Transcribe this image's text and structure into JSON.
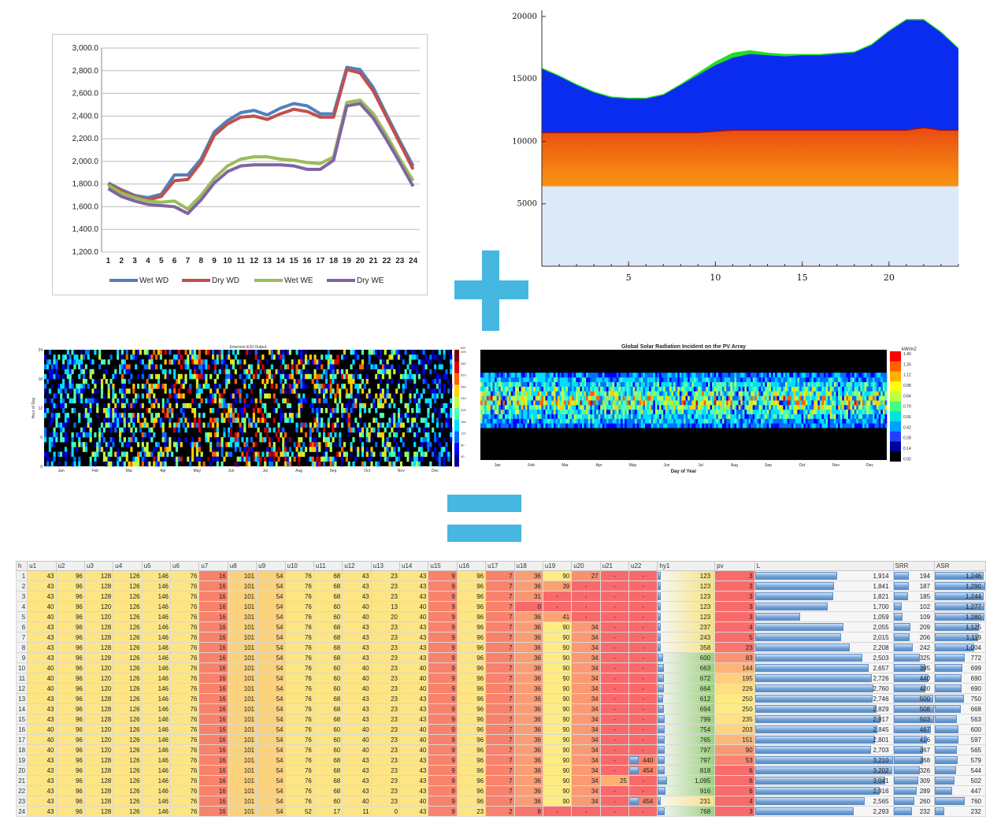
{
  "operators": {
    "plus": "+",
    "equals": "="
  },
  "chart_data": [
    {
      "type": "line",
      "y_tick_labels": [
        "3,000.0",
        "2,800.0",
        "2,600.0",
        "2,400.0",
        "2,200.0",
        "2,000.0",
        "1,800.0",
        "1,600.0",
        "1,400.0",
        "1,200.0"
      ],
      "ylim": [
        1200,
        3000
      ],
      "x": [
        1,
        2,
        3,
        4,
        5,
        6,
        7,
        8,
        9,
        10,
        11,
        12,
        13,
        14,
        15,
        16,
        17,
        18,
        19,
        20,
        21,
        22,
        23,
        24
      ],
      "grid": true,
      "legend_position": "bottom",
      "series": [
        {
          "name": "Wet WD",
          "color": "#4f81bd",
          "values": [
            1810,
            1750,
            1700,
            1680,
            1710,
            1880,
            1880,
            2020,
            2260,
            2360,
            2430,
            2450,
            2410,
            2470,
            2510,
            2490,
            2420,
            2420,
            2830,
            2810,
            2650,
            2410,
            2180,
            1960
          ]
        },
        {
          "name": "Dry WD",
          "color": "#c0504d",
          "values": [
            1800,
            1740,
            1690,
            1660,
            1690,
            1830,
            1840,
            1990,
            2230,
            2330,
            2390,
            2400,
            2370,
            2420,
            2460,
            2440,
            2390,
            2390,
            2810,
            2780,
            2620,
            2390,
            2160,
            1930
          ]
        },
        {
          "name": "Wet WE",
          "color": "#9bbb59",
          "values": [
            1790,
            1720,
            1680,
            1650,
            1640,
            1650,
            1580,
            1700,
            1850,
            1960,
            2020,
            2040,
            2040,
            2020,
            2010,
            1990,
            1980,
            2040,
            2520,
            2540,
            2420,
            2230,
            2020,
            1830
          ]
        },
        {
          "name": "Dry WE",
          "color": "#8064a2",
          "values": [
            1760,
            1690,
            1650,
            1620,
            1610,
            1600,
            1540,
            1660,
            1810,
            1910,
            1960,
            1970,
            1970,
            1970,
            1960,
            1930,
            1930,
            2010,
            2490,
            2510,
            2380,
            2190,
            1990,
            1780
          ]
        }
      ]
    },
    {
      "type": "area",
      "x_tick_labels": [
        "5",
        "10",
        "15",
        "20"
      ],
      "y_tick_labels": [
        "20000",
        "15000",
        "10000",
        "5000"
      ],
      "xlim": [
        0,
        24
      ],
      "ylim": [
        0,
        20500
      ],
      "x": [
        0,
        1,
        2,
        3,
        4,
        5,
        6,
        7,
        8,
        9,
        10,
        11,
        12,
        13,
        14,
        15,
        16,
        17,
        18,
        19,
        20,
        21,
        22,
        23,
        24
      ],
      "layers": [
        {
          "color": "#dbe9f8",
          "values": [
            6400,
            6400,
            6400,
            6400,
            6400,
            6400,
            6400,
            6400,
            6400,
            6400,
            6400,
            6400,
            6400,
            6400,
            6400,
            6400,
            6400,
            6400,
            6400,
            6400,
            6400,
            6400,
            6400,
            6400,
            6400
          ]
        },
        {
          "color": "#ffc21a",
          "values": [
            10700,
            10700,
            10700,
            10700,
            10700,
            10700,
            10700,
            10700,
            10700,
            10700,
            10800,
            10900,
            10900,
            10900,
            10900,
            10900,
            10900,
            10900,
            10900,
            10900,
            10900,
            10900,
            11100,
            10900,
            10900
          ]
        },
        {
          "color": "#0a2cf0",
          "values": [
            15800,
            15200,
            14500,
            13900,
            13500,
            13400,
            13400,
            13700,
            14500,
            15300,
            16100,
            16700,
            17000,
            16900,
            16800,
            16900,
            16900,
            17000,
            17100,
            17700,
            18800,
            19700,
            19700,
            18700,
            17400
          ]
        },
        {
          "color": "#22dd22",
          "values": [
            15900,
            15300,
            14600,
            14000,
            13600,
            13500,
            13500,
            13800,
            14600,
            15500,
            16400,
            17100,
            17300,
            17100,
            17000,
            17000,
            17000,
            17100,
            17200,
            17800,
            18900,
            19800,
            19800,
            18800,
            17500
          ]
        }
      ]
    },
    {
      "type": "heatmap",
      "title": "Emerson E33 Output",
      "ylabel": "Hour of Day",
      "y_tick_labels": [
        "24",
        "18",
        "12",
        "6",
        "0"
      ],
      "x_tick_labels": [
        "Jan",
        "Feb",
        "Mar",
        "Apr",
        "May",
        "Jun",
        "Jul",
        "Aug",
        "Sep",
        "Oct",
        "Nov",
        "Dec"
      ],
      "colorbar_unit": "kW",
      "colorbar_ticks": [
        "400",
        "360",
        "320",
        "280",
        "240",
        "200",
        "160",
        "120",
        "80",
        "40"
      ]
    },
    {
      "type": "heatmap",
      "title": "Global Solar Radiation Incident on the PV Array",
      "xlabel": "Day of Year",
      "y_tick_labels": [
        "24",
        "18",
        "12",
        "6",
        "0"
      ],
      "x_tick_labels": [
        "Jan",
        "Feb",
        "Mar",
        "Apr",
        "May",
        "Jun",
        "Jul",
        "Aug",
        "Sep",
        "Oct",
        "Nov",
        "Dec"
      ],
      "colorbar_unit": "kW/m2",
      "colorbar_ticks": [
        "1.40",
        "1.26",
        "1.12",
        "0.98",
        "0.84",
        "0.70",
        "0.56",
        "0.42",
        "0.28",
        "0.14",
        "0.00"
      ]
    },
    {
      "type": "table",
      "columns": [
        "h",
        "u1",
        "u2",
        "u3",
        "u4",
        "u5",
        "u6",
        "u7",
        "u8",
        "u9",
        "u10",
        "u11",
        "u12",
        "u13",
        "u14",
        "u15",
        "u16",
        "u17",
        "u18",
        "u19",
        "u20",
        "u21",
        "u22",
        "hy1",
        "pv",
        "L",
        "SRR",
        "ASR"
      ],
      "rows": [
        [
          "1",
          "43",
          "96",
          "128",
          "126",
          "146",
          "76",
          "16",
          "101",
          "54",
          "76",
          "68",
          "43",
          "23",
          "43",
          "9",
          "96",
          "7",
          "36",
          "90",
          "27",
          "-",
          "-",
          "123",
          "3",
          "1,914",
          "194",
          "1,246"
        ],
        [
          "2",
          "43",
          "96",
          "128",
          "126",
          "146",
          "76",
          "16",
          "101",
          "54",
          "76",
          "68",
          "43",
          "23",
          "43",
          "9",
          "96",
          "7",
          "36",
          "39",
          "-",
          "-",
          "-",
          "123",
          "3",
          "1,841",
          "187",
          "1,290"
        ],
        [
          "3",
          "43",
          "96",
          "128",
          "126",
          "146",
          "76",
          "16",
          "101",
          "54",
          "76",
          "68",
          "43",
          "23",
          "43",
          "9",
          "96",
          "7",
          "31",
          "-",
          "-",
          "-",
          "-",
          "123",
          "3",
          "1,821",
          "185",
          "1,244"
        ],
        [
          "4",
          "40",
          "96",
          "120",
          "126",
          "146",
          "76",
          "16",
          "101",
          "54",
          "76",
          "60",
          "40",
          "13",
          "40",
          "9",
          "96",
          "7",
          "0",
          "-",
          "-",
          "-",
          "-",
          "123",
          "3",
          "1,700",
          "102",
          "1,277"
        ],
        [
          "5",
          "40",
          "96",
          "120",
          "126",
          "146",
          "76",
          "16",
          "101",
          "54",
          "76",
          "60",
          "40",
          "20",
          "40",
          "9",
          "96",
          "7",
          "36",
          "41",
          "-",
          "-",
          "-",
          "123",
          "3",
          "1,059",
          "109",
          "1,280"
        ],
        [
          "6",
          "43",
          "96",
          "128",
          "126",
          "146",
          "76",
          "16",
          "101",
          "54",
          "76",
          "68",
          "43",
          "23",
          "43",
          "9",
          "96",
          "7",
          "36",
          "90",
          "34",
          "-",
          "-",
          "237",
          "4",
          "2,055",
          "209",
          "1,125"
        ],
        [
          "7",
          "43",
          "96",
          "128",
          "126",
          "146",
          "76",
          "16",
          "101",
          "54",
          "76",
          "68",
          "43",
          "23",
          "43",
          "9",
          "96",
          "7",
          "36",
          "90",
          "34",
          "-",
          "-",
          "243",
          "5",
          "2,015",
          "206",
          "1,119"
        ],
        [
          "8",
          "43",
          "96",
          "128",
          "126",
          "146",
          "76",
          "16",
          "101",
          "54",
          "76",
          "68",
          "43",
          "23",
          "43",
          "9",
          "96",
          "7",
          "36",
          "90",
          "34",
          "-",
          "-",
          "358",
          "23",
          "2,208",
          "242",
          "1,004"
        ],
        [
          "9",
          "43",
          "96",
          "128",
          "126",
          "146",
          "76",
          "16",
          "101",
          "54",
          "76",
          "68",
          "43",
          "23",
          "43",
          "9",
          "96",
          "7",
          "36",
          "90",
          "34",
          "-",
          "-",
          "600",
          "83",
          "2,503",
          "325",
          "772"
        ],
        [
          "10",
          "40",
          "96",
          "120",
          "126",
          "146",
          "76",
          "16",
          "101",
          "54",
          "76",
          "60",
          "40",
          "23",
          "40",
          "9",
          "96",
          "7",
          "36",
          "90",
          "34",
          "-",
          "-",
          "663",
          "144",
          "2,657",
          "395",
          "699"
        ],
        [
          "11",
          "40",
          "96",
          "120",
          "126",
          "146",
          "76",
          "16",
          "101",
          "54",
          "76",
          "60",
          "40",
          "23",
          "40",
          "9",
          "96",
          "7",
          "36",
          "90",
          "34",
          "-",
          "-",
          "672",
          "195",
          "2,726",
          "440",
          "690"
        ],
        [
          "12",
          "40",
          "96",
          "120",
          "126",
          "146",
          "76",
          "16",
          "101",
          "54",
          "76",
          "60",
          "40",
          "23",
          "40",
          "9",
          "96",
          "7",
          "36",
          "90",
          "34",
          "-",
          "-",
          "664",
          "226",
          "2,760",
          "400",
          "690"
        ],
        [
          "13",
          "43",
          "96",
          "128",
          "126",
          "146",
          "76",
          "16",
          "101",
          "54",
          "76",
          "68",
          "43",
          "23",
          "43",
          "9",
          "96",
          "7",
          "36",
          "90",
          "34",
          "-",
          "-",
          "612",
          "250",
          "2,746",
          "500",
          "750"
        ],
        [
          "14",
          "43",
          "96",
          "128",
          "126",
          "146",
          "76",
          "16",
          "101",
          "54",
          "76",
          "68",
          "43",
          "23",
          "43",
          "9",
          "96",
          "7",
          "36",
          "90",
          "34",
          "-",
          "-",
          "694",
          "250",
          "2,829",
          "508",
          "668"
        ],
        [
          "15",
          "43",
          "96",
          "128",
          "126",
          "146",
          "76",
          "16",
          "101",
          "54",
          "76",
          "68",
          "43",
          "23",
          "43",
          "9",
          "96",
          "7",
          "36",
          "90",
          "34",
          "-",
          "-",
          "799",
          "235",
          "2,917",
          "503",
          "563"
        ],
        [
          "16",
          "40",
          "96",
          "120",
          "126",
          "146",
          "76",
          "16",
          "101",
          "54",
          "76",
          "60",
          "40",
          "23",
          "40",
          "9",
          "96",
          "7",
          "36",
          "90",
          "34",
          "-",
          "-",
          "754",
          "203",
          "2,845",
          "467",
          "600"
        ],
        [
          "17",
          "40",
          "96",
          "120",
          "126",
          "146",
          "76",
          "16",
          "101",
          "54",
          "76",
          "60",
          "40",
          "23",
          "40",
          "9",
          "96",
          "7",
          "36",
          "90",
          "34",
          "-",
          "-",
          "765",
          "151",
          "2,801",
          "416",
          "597"
        ],
        [
          "18",
          "40",
          "96",
          "120",
          "126",
          "146",
          "76",
          "16",
          "101",
          "54",
          "76",
          "60",
          "40",
          "23",
          "40",
          "9",
          "96",
          "7",
          "36",
          "90",
          "34",
          "-",
          "-",
          "797",
          "90",
          "2,703",
          "367",
          "565"
        ],
        [
          "19",
          "43",
          "96",
          "128",
          "126",
          "146",
          "76",
          "16",
          "101",
          "54",
          "76",
          "68",
          "43",
          "23",
          "43",
          "9",
          "96",
          "7",
          "36",
          "90",
          "34",
          "-",
          "440",
          "797",
          "53",
          "3,210",
          "368",
          "579"
        ],
        [
          "20",
          "43",
          "96",
          "128",
          "126",
          "146",
          "76",
          "16",
          "101",
          "54",
          "76",
          "68",
          "43",
          "23",
          "43",
          "9",
          "96",
          "7",
          "36",
          "90",
          "34",
          "-",
          "454",
          "818",
          "6",
          "3,202",
          "326",
          "544"
        ],
        [
          "21",
          "43",
          "96",
          "128",
          "126",
          "146",
          "76",
          "16",
          "101",
          "54",
          "76",
          "68",
          "43",
          "23",
          "43",
          "9",
          "96",
          "7",
          "36",
          "90",
          "34",
          "25",
          "-",
          "1,095",
          "6",
          "3,041",
          "309",
          "502"
        ],
        [
          "22",
          "43",
          "96",
          "128",
          "126",
          "146",
          "76",
          "16",
          "101",
          "54",
          "76",
          "68",
          "43",
          "23",
          "43",
          "9",
          "96",
          "7",
          "36",
          "90",
          "34",
          "-",
          "-",
          "916",
          "6",
          "2,916",
          "289",
          "447"
        ],
        [
          "23",
          "43",
          "96",
          "128",
          "126",
          "146",
          "76",
          "16",
          "101",
          "54",
          "76",
          "60",
          "40",
          "23",
          "40",
          "9",
          "96",
          "7",
          "36",
          "90",
          "34",
          "-",
          "454",
          "231",
          "4",
          "2,565",
          "260",
          "760"
        ],
        [
          "24",
          "43",
          "96",
          "128",
          "126",
          "146",
          "76",
          "16",
          "101",
          "54",
          "52",
          "17",
          "11",
          "0",
          "43",
          "9",
          "23",
          "2",
          "8",
          "-",
          "-",
          "-",
          "-",
          "768",
          "3",
          "2,293",
          "232",
          "232"
        ]
      ]
    }
  ]
}
